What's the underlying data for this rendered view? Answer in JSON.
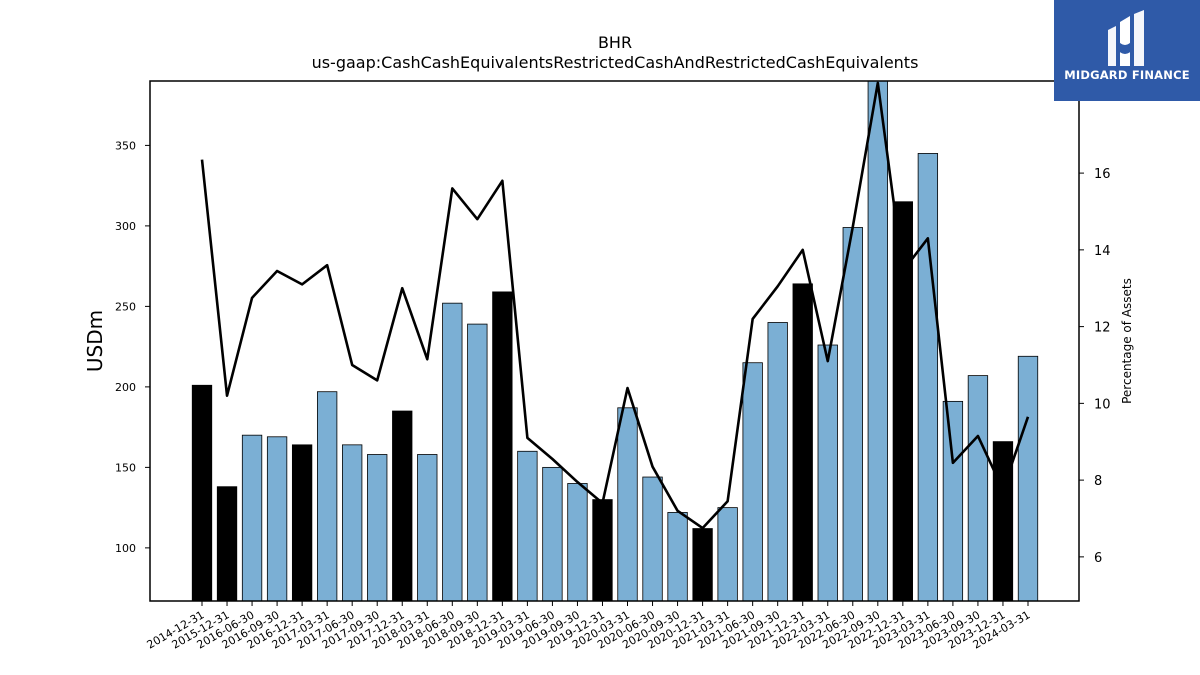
{
  "chart_data": {
    "type": "bar",
    "title": "BHR",
    "subtitle": "us-gaap:CashCashEquivalentsRestrictedCashAndRestrictedCashEquivalents",
    "ylabel": "USDm",
    "y2label": "Percentage of Assets",
    "ylim": [
      67,
      390
    ],
    "y2lim": [
      4.85,
      18.4
    ],
    "yticks": [
      100,
      150,
      200,
      250,
      300,
      350
    ],
    "y2ticks": [
      6,
      8,
      10,
      12,
      14,
      16
    ],
    "categories": [
      "2014-12-31",
      "2015-12-31",
      "2016-06-30",
      "2016-09-30",
      "2016-12-31",
      "2017-03-31",
      "2017-06-30",
      "2017-09-30",
      "2017-12-31",
      "2018-03-31",
      "2018-06-30",
      "2018-09-30",
      "2018-12-31",
      "2019-03-31",
      "2019-06-30",
      "2019-09-30",
      "2019-12-31",
      "2020-03-31",
      "2020-06-30",
      "2020-09-30",
      "2020-12-31",
      "2021-03-31",
      "2021-06-30",
      "2021-09-30",
      "2021-12-31",
      "2022-03-31",
      "2022-06-30",
      "2022-09-30",
      "2022-12-31",
      "2023-03-31",
      "2023-06-30",
      "2023-09-30",
      "2023-12-31",
      "2024-03-31"
    ],
    "series": [
      {
        "kind": "bar",
        "values": [
          201,
          138,
          170,
          169,
          164,
          197,
          164,
          158,
          185,
          158,
          252,
          239,
          259,
          160,
          150,
          140,
          130,
          187,
          144,
          122,
          112,
          125,
          215,
          240,
          264,
          226,
          299,
          392,
          315,
          345,
          191,
          207,
          166,
          219
        ],
        "highlight": [
          true,
          true,
          false,
          false,
          true,
          false,
          false,
          false,
          true,
          false,
          false,
          false,
          true,
          false,
          false,
          false,
          true,
          false,
          false,
          false,
          true,
          false,
          false,
          false,
          true,
          false,
          false,
          false,
          true,
          false,
          false,
          false,
          true,
          false
        ]
      },
      {
        "kind": "line",
        "axis": "right",
        "values": [
          16.35,
          10.2,
          12.75,
          13.45,
          13.1,
          13.6,
          11.0,
          10.6,
          13.0,
          11.15,
          15.6,
          14.8,
          15.8,
          9.1,
          8.55,
          7.95,
          7.4,
          10.4,
          8.35,
          7.2,
          6.75,
          7.45,
          12.2,
          13.05,
          14.0,
          11.1,
          14.6,
          18.35,
          13.45,
          14.3,
          8.45,
          9.15,
          7.75,
          9.65
        ]
      }
    ],
    "colors": {
      "bar": "#7bafd4",
      "bar_highlight": "#000000",
      "line": "#000000"
    },
    "grid": false,
    "legend": "none"
  },
  "logo": {
    "text": "MIDGARD FINANCE",
    "background": "#2f5aa8"
  }
}
